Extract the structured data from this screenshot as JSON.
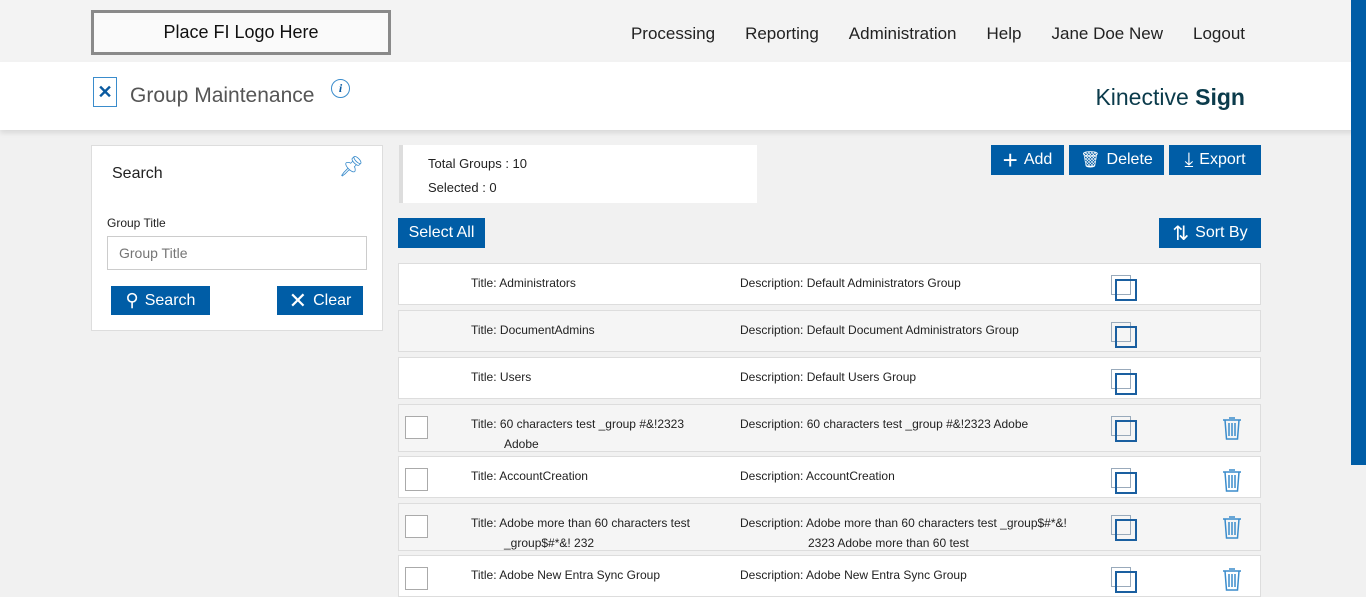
{
  "logo": "Place FI Logo Here",
  "nav": [
    "Processing",
    "Reporting",
    "Administration",
    "Help",
    "Jane Doe New",
    "Logout"
  ],
  "page_title": "Group Maintenance",
  "brand": {
    "a": "Kinective",
    "b": "Sign"
  },
  "search": {
    "title": "Search",
    "label": "Group Title",
    "placeholder": "Group Title",
    "search_btn": "Search",
    "clear_btn": "Clear"
  },
  "counts": {
    "total": "Total Groups : 10",
    "selected": "Selected : 0"
  },
  "toolbar": {
    "add": "Add",
    "delete": "Delete",
    "export": "Export",
    "select_all": "Select All",
    "sort": "Sort By"
  },
  "accent": "#005da6",
  "rows": [
    {
      "title": "Administrators",
      "desc": "Default Administrators Group",
      "sel": false,
      "del": false
    },
    {
      "title": "DocumentAdmins",
      "desc": "Default Document Administrators Group",
      "sel": false,
      "del": false
    },
    {
      "title": "Users",
      "desc": "Default Users Group",
      "sel": false,
      "del": false
    },
    {
      "title": "60 characters test _group #&!2323 Adobe",
      "desc": "60 characters test _group #&!2323 Adobe",
      "sel": true,
      "del": true
    },
    {
      "title": "AccountCreation",
      "desc": "AccountCreation",
      "sel": true,
      "del": true
    },
    {
      "title": "Adobe more than 60 characters test _group$#*&! 232",
      "desc": "Adobe more than 60 characters test _group$#*&! 2323 Adobe more than 60 test",
      "sel": true,
      "del": true
    },
    {
      "title": "Adobe New Entra Sync Group",
      "desc": "Adobe New Entra Sync Group",
      "sel": true,
      "del": true
    }
  ],
  "labels": {
    "title": "Title: ",
    "desc": "Description: "
  }
}
